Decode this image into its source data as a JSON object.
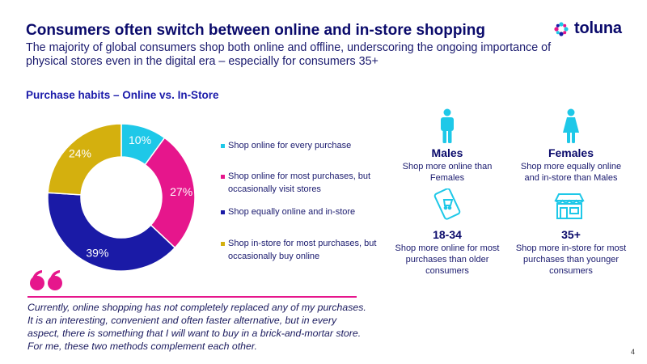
{
  "header": {
    "title": "Consumers often switch between online and in-store shopping",
    "subtitle": "The majority of global consumers shop both online and offline, underscoring the ongoing importance of physical stores even in the digital era – especially for consumers 35+",
    "logo_text": "toluna",
    "logo_icon": "asterisk-logo-icon"
  },
  "section_title": "Purchase habits – Online vs. In-Store",
  "chart_data": {
    "type": "pie",
    "donut": true,
    "categories": [
      "Shop online for every purchase",
      "Shop online for most purchases, but occasionally visit stores",
      "Shop equally online and in-store",
      "Shop in-store for most purchases, but occasionally buy online"
    ],
    "values": [
      10,
      27,
      39,
      24
    ],
    "value_labels": [
      "10%",
      "27%",
      "39%",
      "24%"
    ],
    "colors": [
      "#1ec8e8",
      "#e6168c",
      "#1a1aa6",
      "#d4b00e"
    ]
  },
  "stats": [
    {
      "title": "Males",
      "desc": "Shop more online than Females",
      "icon": "male-person-icon"
    },
    {
      "title": "Females",
      "desc": "Shop more equally online and in-store than Males",
      "icon": "female-person-icon"
    },
    {
      "title": "18-34",
      "desc": "Shop more online for most purchases than older consumers",
      "icon": "mobile-shopping-icon"
    },
    {
      "title": "35+",
      "desc": "Shop more in-store for most purchases than younger consumers",
      "icon": "storefront-icon"
    }
  ],
  "quote": {
    "text": "Currently, online shopping has not completely replaced any of my purchases. It is an interesting, convenient and often faster alternative, but in every aspect, there is something that I will want to buy in a brick-and-mortar store. For me, these two methods complement each other.",
    "accent_color": "#e6168c"
  },
  "page_number": "4",
  "colors": {
    "navy": "#0a0a6b",
    "teal": "#1ec8e8",
    "magenta": "#e6168c",
    "blue": "#1a1aa6",
    "gold": "#d4b00e"
  }
}
